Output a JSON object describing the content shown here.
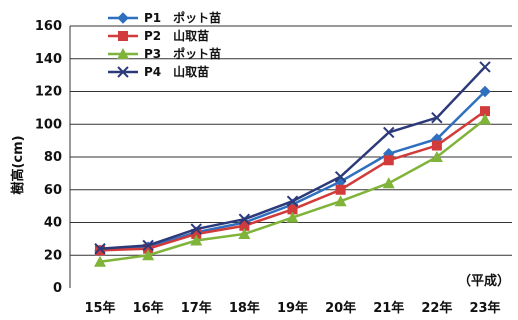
{
  "chart_data": {
    "type": "line",
    "categories": [
      "15年",
      "16年",
      "17年",
      "18年",
      "19年",
      "20年",
      "21年",
      "22年",
      "23年"
    ],
    "xlabel_note": "（平成）",
    "ylabel": "樹高(cm)",
    "ylim": [
      0,
      160
    ],
    "yticks": [
      0,
      20,
      40,
      60,
      80,
      100,
      120,
      140,
      160
    ],
    "grid": true,
    "legend_position": "top-left",
    "series": [
      {
        "name": "P1　ポット苗",
        "color": "#2f6fbf",
        "marker": "diamond",
        "values": [
          23,
          25,
          34,
          40,
          51,
          65,
          82,
          91,
          120
        ]
      },
      {
        "name": "P2　山取苗",
        "color": "#d23b3b",
        "marker": "square",
        "values": [
          23,
          24,
          33,
          38,
          48,
          60,
          78,
          87,
          108
        ]
      },
      {
        "name": "P3　ポット苗",
        "color": "#7fb33a",
        "marker": "triangle",
        "values": [
          16,
          20,
          29,
          33,
          43,
          53,
          64,
          80,
          103
        ]
      },
      {
        "name": "P4　山取苗",
        "color": "#2d3a7a",
        "marker": "x",
        "values": [
          24,
          26,
          36,
          42,
          53,
          68,
          95,
          104,
          135
        ]
      }
    ]
  }
}
